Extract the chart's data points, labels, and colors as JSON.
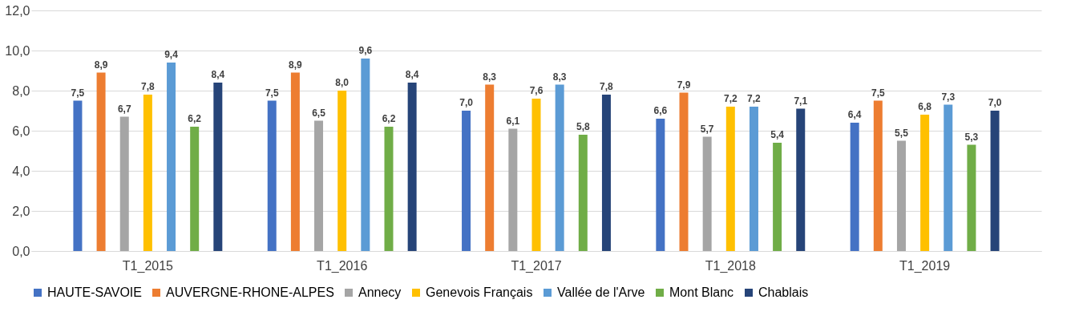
{
  "chart_data": {
    "type": "bar",
    "categories": [
      "T1_2015",
      "T1_2016",
      "T1_2017",
      "T1_2018",
      "T1_2019"
    ],
    "series": [
      {
        "name": "HAUTE-SAVOIE",
        "color": "#4472c4",
        "values": [
          7.5,
          7.5,
          7.0,
          6.6,
          6.4
        ],
        "value_labels": [
          "7,5",
          "7,5",
          "7,0",
          "6,6",
          "6,4"
        ]
      },
      {
        "name": "AUVERGNE-RHONE-ALPES",
        "color": "#ed7d31",
        "values": [
          8.9,
          8.9,
          8.3,
          7.9,
          7.5
        ],
        "value_labels": [
          "8,9",
          "8,9",
          "8,3",
          "7,9",
          "7,5"
        ]
      },
      {
        "name": "Annecy",
        "color": "#a5a5a5",
        "values": [
          6.7,
          6.5,
          6.1,
          5.7,
          5.5
        ],
        "value_labels": [
          "6,7",
          "6,5",
          "6,1",
          "5,7",
          "5,5"
        ]
      },
      {
        "name": "Genevois Français",
        "color": "#ffc000",
        "values": [
          7.8,
          8.0,
          7.6,
          7.2,
          6.8
        ],
        "value_labels": [
          "7,8",
          "8,0",
          "7,6",
          "7,2",
          "6,8"
        ]
      },
      {
        "name": "Vallée de l'Arve",
        "color": "#5b9bd5",
        "values": [
          9.4,
          9.6,
          8.3,
          7.2,
          7.3
        ],
        "value_labels": [
          "9,4",
          "9,6",
          "8,3",
          "7,2",
          "7,3"
        ]
      },
      {
        "name": "Mont Blanc",
        "color": "#70ad47",
        "values": [
          6.2,
          6.2,
          5.8,
          5.4,
          5.3
        ],
        "value_labels": [
          "6,2",
          "6,2",
          "5,8",
          "5,4",
          "5,3"
        ]
      },
      {
        "name": "Chablais",
        "color": "#264478",
        "values": [
          8.4,
          8.4,
          7.8,
          7.1,
          7.0
        ],
        "value_labels": [
          "8,4",
          "8,4",
          "7,8",
          "7,1",
          "7,0"
        ]
      }
    ],
    "ylim": [
      0,
      12
    ],
    "yticks": [
      {
        "value": 0,
        "label": "0,0"
      },
      {
        "value": 2,
        "label": "2,0"
      },
      {
        "value": 4,
        "label": "4,0"
      },
      {
        "value": 6,
        "label": "6,0"
      },
      {
        "value": 8,
        "label": "8,0"
      },
      {
        "value": 10,
        "label": "10,0"
      },
      {
        "value": 12,
        "label": "12,0"
      }
    ],
    "grid": "y",
    "legend": "bottom"
  }
}
